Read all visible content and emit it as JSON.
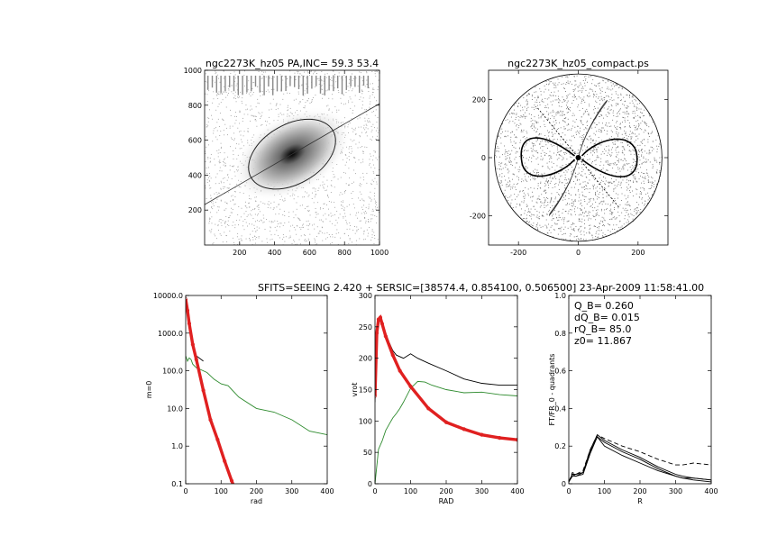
{
  "figure": {
    "header": "SFITS=SEEING 2.420 + SERSIC=[38574.4, 0.854100, 0.506500]  23-Apr-2009 11:58:41.00"
  },
  "chart_data": [
    {
      "id": "image",
      "type": "heatmap",
      "title": "ngc2273K_hz05 PA,INC= 59.3 53.4",
      "xlim": [
        0,
        1000
      ],
      "ylim": [
        0,
        1000
      ],
      "xticks": [
        200,
        400,
        600,
        800,
        1000
      ],
      "yticks": [
        200,
        400,
        600,
        800,
        1000
      ],
      "galaxy_center": [
        500,
        520
      ],
      "ellipse": {
        "rx": 270,
        "ry": 170,
        "angle_deg": 30
      }
    },
    {
      "id": "compact",
      "type": "heatmap",
      "title": "ngc2273K_hz05_compact.ps",
      "xlim": [
        -300,
        300
      ],
      "ylim": [
        -300,
        300
      ],
      "xticks": [
        -200,
        0,
        200
      ],
      "yticks": [
        -200,
        0,
        200
      ],
      "circle_radius": 280
    },
    {
      "id": "profile",
      "type": "line",
      "log_y": true,
      "xlabel": "rad",
      "ylabel": "m=0",
      "xlim": [
        0,
        400
      ],
      "ylim": [
        0.1,
        10000
      ],
      "xticks": [
        0,
        100,
        200,
        300,
        400
      ],
      "yticks": [
        0.1,
        1.0,
        10.0,
        100.0,
        1000.0,
        10000.0
      ],
      "ytick_labels": [
        "0.1",
        "1.0",
        "10.0",
        "100.0",
        "1000.0",
        "10000.0"
      ],
      "series": [
        {
          "color": "#000000",
          "x": [
            0,
            5,
            10,
            20,
            30,
            50
          ],
          "y": [
            8000,
            4000,
            1500,
            500,
            250,
            180
          ]
        },
        {
          "color": "#2e8b2e",
          "x": [
            0,
            5,
            10,
            15,
            20,
            30,
            40,
            60,
            80,
            100,
            120,
            150,
            200,
            250,
            300,
            350,
            400
          ],
          "y": [
            250,
            180,
            220,
            200,
            150,
            120,
            110,
            90,
            60,
            45,
            40,
            20,
            10,
            8,
            5,
            2.5,
            2
          ]
        },
        {
          "color": "#e02020",
          "x": [
            0,
            5,
            10,
            20,
            30,
            50,
            70,
            90,
            110,
            130,
            140
          ],
          "y": [
            8000,
            4000,
            1800,
            500,
            200,
            30,
            5,
            1.5,
            0.4,
            0.12,
            0.07
          ]
        }
      ]
    },
    {
      "id": "vrot",
      "type": "line",
      "xlabel": "RAD",
      "ylabel": "vrot",
      "xlim": [
        0,
        400
      ],
      "ylim": [
        0,
        300
      ],
      "xticks": [
        0,
        100,
        200,
        300,
        400
      ],
      "yticks": [
        0,
        50,
        100,
        150,
        200,
        250,
        300
      ],
      "series": [
        {
          "color": "#000000",
          "x": [
            0,
            5,
            10,
            15,
            20,
            30,
            40,
            50,
            60,
            80,
            100,
            120,
            150,
            200,
            250,
            300,
            350,
            400
          ],
          "y": [
            130,
            240,
            262,
            263,
            255,
            240,
            225,
            212,
            205,
            200,
            207,
            200,
            192,
            180,
            167,
            160,
            157,
            157
          ]
        },
        {
          "color": "#2e8b2e",
          "x": [
            0,
            10,
            20,
            30,
            40,
            50,
            60,
            70,
            80,
            100,
            120,
            140,
            160,
            200,
            250,
            300,
            350,
            400
          ],
          "y": [
            0,
            55,
            68,
            85,
            95,
            105,
            112,
            120,
            130,
            152,
            163,
            162,
            157,
            150,
            145,
            146,
            142,
            140
          ]
        },
        {
          "color": "#e02020",
          "x": [
            0,
            5,
            10,
            15,
            20,
            30,
            50,
            70,
            100,
            150,
            200,
            250,
            300,
            350,
            400
          ],
          "y": [
            140,
            240,
            262,
            265,
            255,
            235,
            205,
            180,
            155,
            120,
            98,
            87,
            78,
            73,
            70
          ]
        }
      ]
    },
    {
      "id": "torque",
      "type": "line",
      "xlabel": "R",
      "ylabel": "FT/FR_0 - quadrants",
      "xlim": [
        0,
        400
      ],
      "ylim": [
        0,
        1
      ],
      "xticks": [
        0,
        100,
        200,
        300,
        400
      ],
      "yticks": [
        0,
        0.2,
        0.4,
        0.6,
        0.8,
        1.0
      ],
      "ytick_labels": [
        "0",
        "0.2",
        "0.4",
        "0.6",
        "0.8",
        "1.0"
      ],
      "annotations": [
        "Q_B=  0.260",
        "dQ_B=  0.015",
        "rQ_B=  85.0",
        "z0= 11.867"
      ],
      "series": [
        {
          "color": "#000000",
          "dashed": true,
          "x": [
            0,
            10,
            20,
            40,
            60,
            80,
            100,
            150,
            200,
            250,
            300,
            320,
            350,
            400
          ],
          "y": [
            0.01,
            0.06,
            0.05,
            0.07,
            0.18,
            0.26,
            0.24,
            0.2,
            0.17,
            0.13,
            0.1,
            0.1,
            0.11,
            0.1
          ]
        },
        {
          "color": "#000000",
          "x": [
            0,
            10,
            20,
            40,
            60,
            80,
            100,
            150,
            200,
            250,
            300,
            320,
            350,
            400
          ],
          "y": [
            0.01,
            0.05,
            0.04,
            0.06,
            0.17,
            0.25,
            0.22,
            0.17,
            0.13,
            0.08,
            0.04,
            0.03,
            0.03,
            0.02
          ]
        },
        {
          "color": "#000000",
          "x": [
            0,
            10,
            20,
            40,
            60,
            80,
            100,
            150,
            200,
            250,
            300,
            320,
            350,
            400
          ],
          "y": [
            0.01,
            0.04,
            0.04,
            0.05,
            0.16,
            0.25,
            0.2,
            0.15,
            0.11,
            0.07,
            0.04,
            0.03,
            0.02,
            0.01
          ]
        },
        {
          "color": "#000000",
          "x": [
            0,
            10,
            20,
            40,
            60,
            80,
            100,
            150,
            200,
            250,
            300,
            320,
            350,
            400
          ],
          "y": [
            0.01,
            0.05,
            0.05,
            0.06,
            0.18,
            0.26,
            0.23,
            0.18,
            0.14,
            0.09,
            0.05,
            0.04,
            0.03,
            0.02
          ]
        }
      ]
    }
  ]
}
